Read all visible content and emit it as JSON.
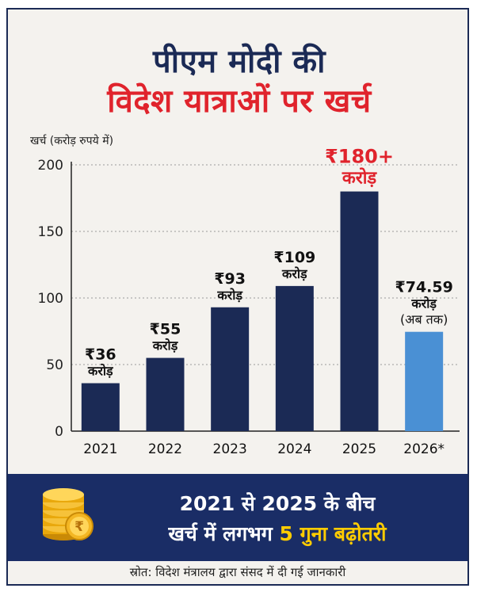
{
  "title": {
    "line1": "पीएम मोदी की",
    "line2": "विदेश यात्राओं पर खर्च"
  },
  "banner": {
    "line1": "2021 से 2025 के बीच",
    "line2_prefix": "खर्च में लगभग ",
    "line2_highlight": "5 गुना बढ़ोतरी"
  },
  "source": "स्रोत: विदेश मंत्रालय द्वारा संसद में दी गई जानकारी",
  "icons": {
    "coins": "coin-stack-icon",
    "rupee": "rupee-icon"
  },
  "colors": {
    "bar": "#1b2a55",
    "bar_highlight_last": "#4a90d4",
    "title_dark": "#1b2a55",
    "title_red": "#e0232c",
    "banner_bg": "#1a2d66",
    "banner_highlight": "#ffcc00",
    "grid": "#9a9a9a"
  },
  "chart_data": {
    "type": "bar",
    "ylabel": "खर्च (करोड़ रुपये में)",
    "xlabel": "",
    "ylim": [
      0,
      200
    ],
    "yticks": [
      0,
      50,
      100,
      150,
      200
    ],
    "grid": "horizontal-dotted",
    "categories": [
      "2021",
      "2022",
      "2023",
      "2024",
      "2025",
      "2026*"
    ],
    "values": [
      36,
      55,
      93,
      109,
      180,
      74.59
    ],
    "bar_labels": [
      {
        "amount": "₹36",
        "unit": "करोड़",
        "note": ""
      },
      {
        "amount": "₹55",
        "unit": "करोड़",
        "note": ""
      },
      {
        "amount": "₹93",
        "unit": "करोड़",
        "note": ""
      },
      {
        "amount": "₹109",
        "unit": "करोड़",
        "note": ""
      },
      {
        "amount": "₹180+",
        "unit": "करोड़",
        "note": ""
      },
      {
        "amount": "₹74.59",
        "unit": "करोड़",
        "note": "(अब तक)"
      }
    ]
  }
}
